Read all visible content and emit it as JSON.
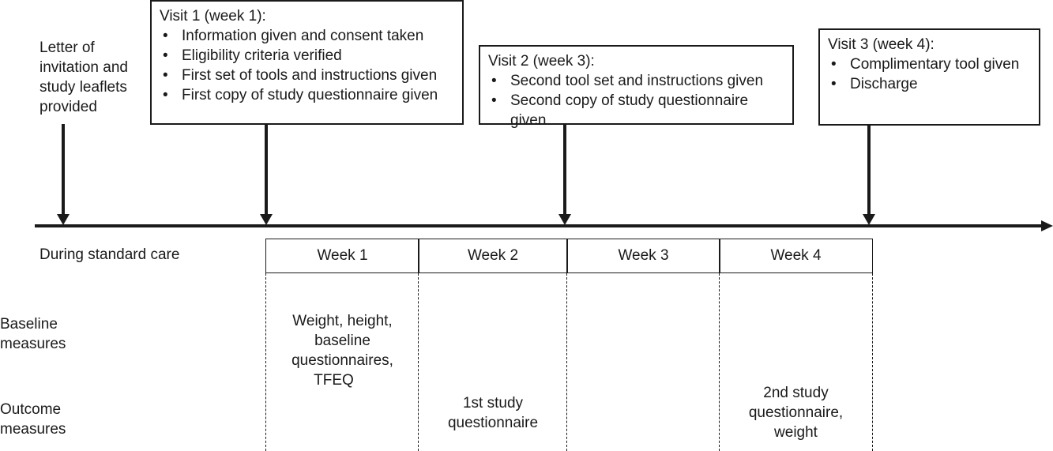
{
  "pre_study": {
    "text_lines": [
      "Letter of",
      "invitation and",
      "study leaflets",
      "provided"
    ]
  },
  "visits": [
    {
      "title": "Visit 1 (week 1):",
      "items": [
        "Information given and consent taken",
        "Eligibility criteria verified",
        "First set of tools and instructions given",
        "First copy of study questionnaire given"
      ]
    },
    {
      "title": "Visit 2 (week 3):",
      "items": [
        "Second tool set and instructions given",
        "Second copy of study questionnaire given"
      ]
    },
    {
      "title": "Visit 3 (week 4):",
      "items": [
        "Complimentary tool given",
        "Discharge"
      ]
    }
  ],
  "standard_care_label": "During standard care",
  "weeks": [
    "Week 1",
    "Week 2",
    "Week 3",
    "Week 4"
  ],
  "row_labels": {
    "baseline": [
      "Baseline",
      "measures"
    ],
    "outcome": [
      "Outcome",
      "measures"
    ]
  },
  "cells": {
    "week1_baseline": [
      "Weight, height,",
      "baseline",
      "questionnaires,",
      "TFEQ"
    ],
    "week2_outcome": [
      "1st study",
      "questionnaire"
    ],
    "week4_outcome": [
      "2nd study",
      "questionnaire,",
      "weight"
    ]
  }
}
